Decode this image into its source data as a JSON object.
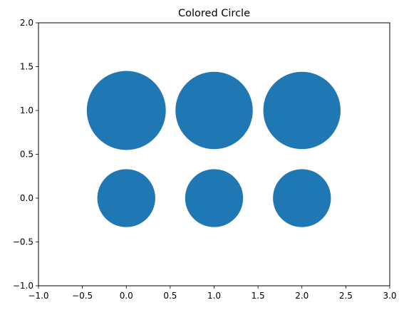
{
  "chart_data": {
    "type": "scatter",
    "title": "Colored Circle",
    "xlabel": "",
    "ylabel": "",
    "xlim": [
      -1.0,
      3.0
    ],
    "ylim": [
      -1.0,
      2.0
    ],
    "xticks": [
      -1.0,
      -0.5,
      0.0,
      0.5,
      1.0,
      1.5,
      2.0,
      2.5,
      3.0
    ],
    "yticks": [
      -1.0,
      -0.5,
      0.0,
      0.5,
      1.0,
      1.5,
      2.0
    ],
    "xtick_labels": [
      "−1.0",
      "−0.5",
      "0.0",
      "0.5",
      "1.0",
      "1.5",
      "2.0",
      "2.5",
      "3.0"
    ],
    "ytick_labels": [
      "−1.0",
      "−0.5",
      "0.0",
      "0.5",
      "1.0",
      "1.5",
      "2.0"
    ],
    "grid": false,
    "color": "#1f77b4",
    "points": [
      {
        "x": 0,
        "y": 1,
        "r": 0.45
      },
      {
        "x": 1,
        "y": 1,
        "r": 0.44
      },
      {
        "x": 2,
        "y": 1,
        "r": 0.44
      },
      {
        "x": 0,
        "y": 0,
        "r": 0.33
      },
      {
        "x": 1,
        "y": 0,
        "r": 0.33
      },
      {
        "x": 2,
        "y": 0,
        "r": 0.33
      }
    ]
  }
}
